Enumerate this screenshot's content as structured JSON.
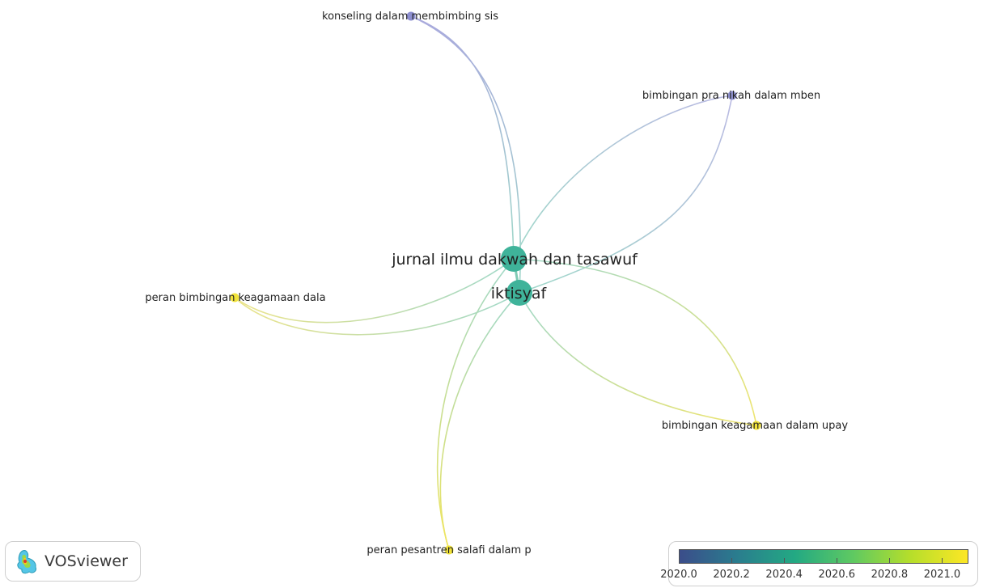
{
  "app": {
    "logo_text": "VOSviewer"
  },
  "network": {
    "hub_nodes": [
      {
        "id": "jurnal",
        "label": "jurnal ilmu dakwah dan tasawuf",
        "year": 2020.4
      },
      {
        "id": "iktisyaf",
        "label": "iktisyaf",
        "year": 2020.45
      }
    ],
    "leaf_nodes": [
      {
        "id": "konseling",
        "label": "konseling dalam membimbing sis",
        "year": 2020.0
      },
      {
        "id": "pranikah",
        "label": "bimbingan pra nikah dalam mben",
        "year": 2020.0
      },
      {
        "id": "peran_bimbingan",
        "label": "peran bimbingan keagamaan dala",
        "year": 2021.0
      },
      {
        "id": "bimbingan_upay",
        "label": "bimbingan keagamaan dalam upay",
        "year": 2021.0
      },
      {
        "id": "pesantren",
        "label": "peran pesantren salafi dalam p",
        "year": 2021.0
      }
    ]
  },
  "legend": {
    "colormap": "viridis",
    "colors": [
      "#3b4d8a",
      "#2a7d8e",
      "#23a983",
      "#5ec962",
      "#b5de2b",
      "#fde725"
    ],
    "min": 2020.0,
    "max": 2021.1,
    "ticks": [
      "2020.0",
      "2020.2",
      "2020.4",
      "2020.6",
      "2020.8",
      "2021.0"
    ]
  }
}
